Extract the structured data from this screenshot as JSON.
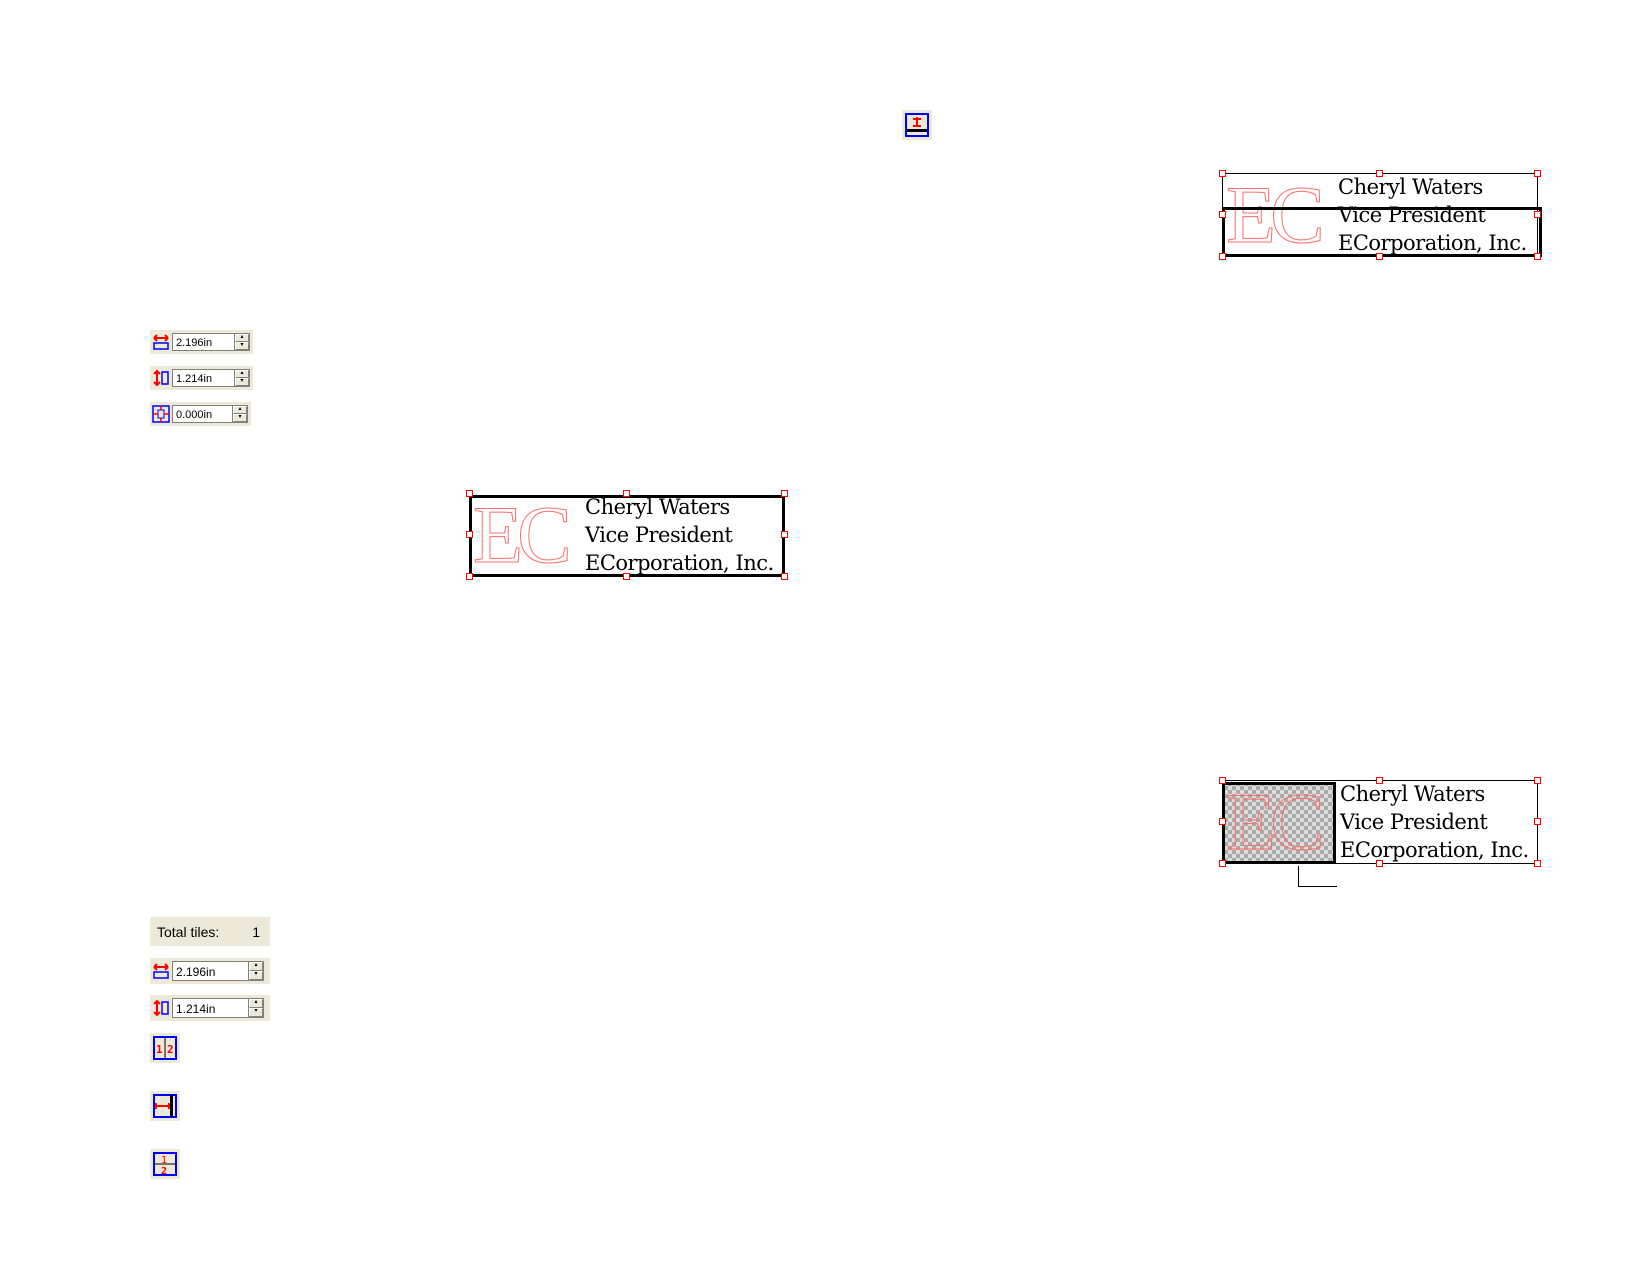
{
  "size_controls": {
    "width_value": "2.196in",
    "height_value": "1.214in",
    "offset_value": "0.000in"
  },
  "tile_controls": {
    "total_tiles_label": "Total tiles:",
    "total_tiles_value": "1",
    "width_value": "2.196in",
    "height_value": "1.214in"
  },
  "business_card": {
    "logo": "EC",
    "name": "Cheryl Waters",
    "title": "Vice President",
    "company": "ECorporation, Inc."
  },
  "icons": [
    "width-icon",
    "height-icon",
    "offset-icon",
    "tile-columns-icon",
    "tile-overlap-icon",
    "tile-rows-icon",
    "align-bottom-icon"
  ],
  "colors": {
    "handle": "#ff0000",
    "icon_blue": "#0000ff",
    "panel": "#ece9d8",
    "logo_outline": "#ff6b6b"
  }
}
